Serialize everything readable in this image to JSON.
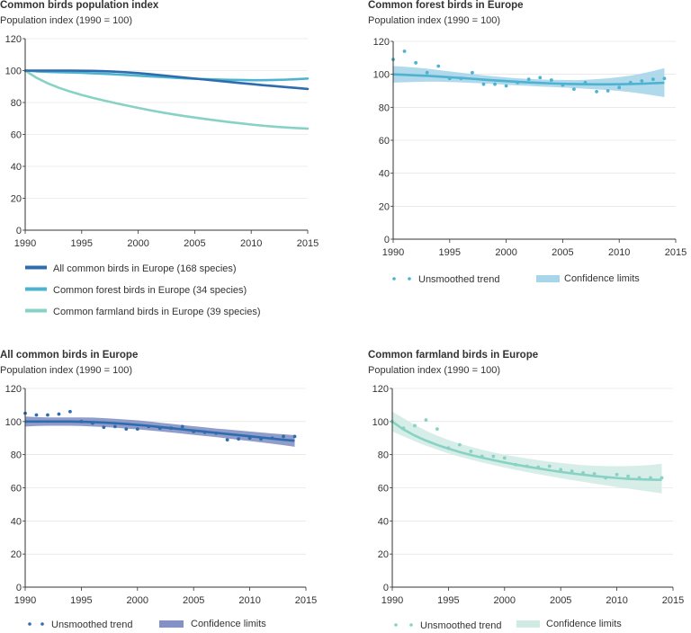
{
  "colors": {
    "all": "#2e6dad",
    "forest": "#4db3d1",
    "farmland": "#88d2c5",
    "all_band": "#8491c4",
    "forest_band": "#a7d5ea",
    "farmland_band": "#cfebe3",
    "axis": "#333333",
    "grid": "#dddddd"
  },
  "chart_data": [
    {
      "id": "overview",
      "type": "line",
      "title": "Common birds population index",
      "ylabel": "Population index (1990 = 100)",
      "xlabel": "",
      "ylim": [
        0,
        120
      ],
      "xlim": [
        1990,
        2015
      ],
      "yticks": [
        "0",
        "20",
        "40",
        "60",
        "80",
        "100",
        "120"
      ],
      "xticks": [
        "1990",
        "1995",
        "2000",
        "2005",
        "2010",
        "2015"
      ],
      "x": [
        1990,
        1991,
        1992,
        1993,
        1994,
        1995,
        1996,
        1997,
        1998,
        1999,
        2000,
        2001,
        2002,
        2003,
        2004,
        2005,
        2006,
        2007,
        2008,
        2009,
        2010,
        2011,
        2012,
        2013,
        2014,
        2015
      ],
      "series": [
        {
          "key": "all",
          "name": "All common birds in Europe (168 species)",
          "values": [
            100,
            100,
            100,
            100,
            100,
            99.9,
            99.8,
            99.6,
            99.3,
            98.9,
            98.4,
            97.8,
            97.1,
            96.4,
            95.7,
            95.0,
            94.3,
            93.6,
            92.9,
            92.2,
            91.6,
            90.9,
            90.3,
            89.7,
            89.1,
            88.5
          ]
        },
        {
          "key": "forest",
          "name": "Common forest birds in Europe (34 species)",
          "values": [
            100,
            99.5,
            99.2,
            99.0,
            98.8,
            98.6,
            98.3,
            98.0,
            97.6,
            97.2,
            96.8,
            96.4,
            96.0,
            95.6,
            95.2,
            94.9,
            94.6,
            94.4,
            94.2,
            94.1,
            94.0,
            94.0,
            94.1,
            94.3,
            94.6,
            95.0
          ]
        },
        {
          "key": "farmland",
          "name": "Common farmland birds in Europe (39 species)",
          "values": [
            100,
            95.5,
            92.0,
            89.2,
            86.8,
            84.7,
            82.9,
            81.2,
            79.6,
            78.1,
            76.6,
            75.2,
            73.9,
            72.7,
            71.6,
            70.6,
            69.6,
            68.7,
            67.8,
            67.0,
            66.2,
            65.5,
            64.9,
            64.4,
            64.0,
            63.6
          ]
        }
      ]
    },
    {
      "id": "forest",
      "type": "line",
      "title": "Common forest birds in Europe",
      "ylabel": "Population index (1990 = 100)",
      "xlabel": "",
      "ylim": [
        0,
        120
      ],
      "xlim": [
        1990,
        2015
      ],
      "yticks": [
        "0",
        "20",
        "40",
        "60",
        "80",
        "100",
        "120"
      ],
      "xticks": [
        "1990",
        "1995",
        "2000",
        "2005",
        "2010",
        "2015"
      ],
      "legend": {
        "points": "Unsmoothed trend",
        "band": "Confidence limits"
      },
      "x": [
        1990,
        1991,
        1992,
        1993,
        1994,
        1995,
        1996,
        1997,
        1998,
        1999,
        2000,
        2001,
        2002,
        2003,
        2004,
        2005,
        2006,
        2007,
        2008,
        2009,
        2010,
        2011,
        2012,
        2013,
        2014
      ],
      "unsmoothed": [
        109,
        114,
        107,
        101,
        105,
        97.5,
        97.5,
        101,
        94,
        94,
        93,
        95,
        97,
        98,
        96.5,
        93.5,
        91,
        95,
        89.5,
        90,
        92,
        95,
        96,
        97,
        97.5
      ],
      "smoothed": [
        100,
        99.7,
        99.4,
        99.1,
        98.7,
        98.2,
        97.8,
        97.3,
        96.8,
        96.3,
        95.9,
        95.5,
        95.1,
        94.8,
        94.5,
        94.3,
        94.1,
        94.0,
        93.9,
        93.9,
        94.0,
        94.1,
        94.3,
        94.6,
        94.9
      ],
      "lower": [
        95,
        95.2,
        95.4,
        95.5,
        95.5,
        95.3,
        95.1,
        94.8,
        94.5,
        94.1,
        93.7,
        93.3,
        93.0,
        92.6,
        92.3,
        92.0,
        91.7,
        91.3,
        90.9,
        90.5,
        89.9,
        89.2,
        88.3,
        87.3,
        86.2
      ],
      "upper": [
        105,
        104.6,
        104.1,
        103.4,
        102.6,
        101.8,
        101.0,
        100.2,
        99.4,
        98.7,
        98.1,
        97.6,
        97.2,
        96.9,
        96.7,
        96.6,
        96.5,
        96.7,
        97.1,
        97.6,
        98.3,
        99.2,
        100.5,
        102.0,
        103.8
      ]
    },
    {
      "id": "all",
      "type": "line",
      "title": "All common birds in Europe",
      "ylabel": "Population index (1990 = 100)",
      "xlabel": "",
      "ylim": [
        0,
        120
      ],
      "xlim": [
        1990,
        2015
      ],
      "yticks": [
        "0",
        "20",
        "40",
        "60",
        "80",
        "100",
        "120"
      ],
      "xticks": [
        "1990",
        "1995",
        "2000",
        "2005",
        "2010",
        "2015"
      ],
      "legend": {
        "points": "Unsmoothed trend",
        "band": "Confidence limits"
      },
      "x": [
        1990,
        1991,
        1992,
        1993,
        1994,
        1995,
        1996,
        1997,
        1998,
        1999,
        2000,
        2001,
        2002,
        2003,
        2004,
        2005,
        2006,
        2007,
        2008,
        2009,
        2010,
        2011,
        2012,
        2013,
        2014
      ],
      "unsmoothed": [
        105,
        104,
        104,
        104.5,
        106,
        100,
        99,
        96.5,
        97,
        95.5,
        95.5,
        97,
        96,
        96,
        97,
        94,
        93.5,
        93,
        89,
        89.5,
        90,
        89.5,
        90,
        91,
        91
      ],
      "smoothed": [
        100,
        100,
        100,
        100,
        100,
        99.9,
        99.7,
        99.4,
        99.0,
        98.5,
        98.0,
        97.4,
        96.7,
        96.0,
        95.3,
        94.6,
        93.9,
        93.2,
        92.5,
        91.8,
        91.1,
        90.4,
        89.7,
        89.0,
        88.4
      ],
      "lower": [
        97,
        97.3,
        97.5,
        97.5,
        97.5,
        97.3,
        97.0,
        96.7,
        96.3,
        95.8,
        95.3,
        94.7,
        94.1,
        93.4,
        92.7,
        92.0,
        91.3,
        90.6,
        89.8,
        89.0,
        88.2,
        87.4,
        86.6,
        85.7,
        84.8
      ],
      "upper": [
        103,
        102.7,
        102.5,
        102.5,
        102.5,
        102.5,
        102.4,
        102.1,
        101.7,
        101.2,
        100.7,
        100.1,
        99.3,
        98.6,
        97.9,
        97.2,
        96.5,
        95.8,
        95.2,
        94.6,
        94.0,
        93.4,
        92.8,
        92.3,
        91.8
      ]
    },
    {
      "id": "farmland",
      "type": "line",
      "title": "Common farmland birds in Europe",
      "ylabel": "Population index (1990 = 100)",
      "xlabel": "",
      "ylim": [
        0,
        120
      ],
      "xlim": [
        1990,
        2015
      ],
      "yticks": [
        "0",
        "20",
        "40",
        "60",
        "80",
        "100",
        "120"
      ],
      "xticks": [
        "1990",
        "1995",
        "2000",
        "2005",
        "2010",
        "2015"
      ],
      "legend": {
        "points": "Unsmoothed trend",
        "band": "Confidence limits"
      },
      "x": [
        1990,
        1991,
        1992,
        1993,
        1994,
        1995,
        1996,
        1997,
        1998,
        1999,
        2000,
        2001,
        2002,
        2003,
        2004,
        2005,
        2006,
        2007,
        2008,
        2009,
        2010,
        2011,
        2012,
        2013,
        2014
      ],
      "unsmoothed": [
        100,
        96,
        97.5,
        101,
        95.5,
        84,
        86,
        82,
        79,
        79,
        78,
        74,
        73,
        72.5,
        73,
        71,
        70,
        69,
        68.5,
        66,
        68,
        67,
        66,
        66,
        66
      ],
      "smoothed": [
        100,
        95.2,
        91.5,
        88.5,
        85.9,
        83.6,
        81.6,
        79.8,
        78.2,
        76.7,
        75.3,
        74.0,
        72.8,
        71.7,
        70.6,
        69.6,
        68.7,
        67.9,
        67.1,
        66.5,
        65.9,
        65.4,
        65.1,
        64.9,
        64.8
      ],
      "lower": [
        94,
        91.0,
        88.1,
        85.4,
        83.0,
        80.8,
        78.8,
        77.0,
        75.3,
        73.7,
        72.2,
        70.8,
        69.5,
        68.2,
        67.0,
        65.8,
        64.7,
        63.6,
        62.5,
        61.5,
        60.5,
        59.5,
        58.6,
        57.6,
        56.6
      ],
      "upper": [
        106,
        102.0,
        98.0,
        94.5,
        91.5,
        88.9,
        86.7,
        84.7,
        83.0,
        81.4,
        80.0,
        78.8,
        77.7,
        76.7,
        75.8,
        75.0,
        74.3,
        73.7,
        73.3,
        73.1,
        73.0,
        73.1,
        73.4,
        73.8,
        74.5
      ]
    }
  ]
}
